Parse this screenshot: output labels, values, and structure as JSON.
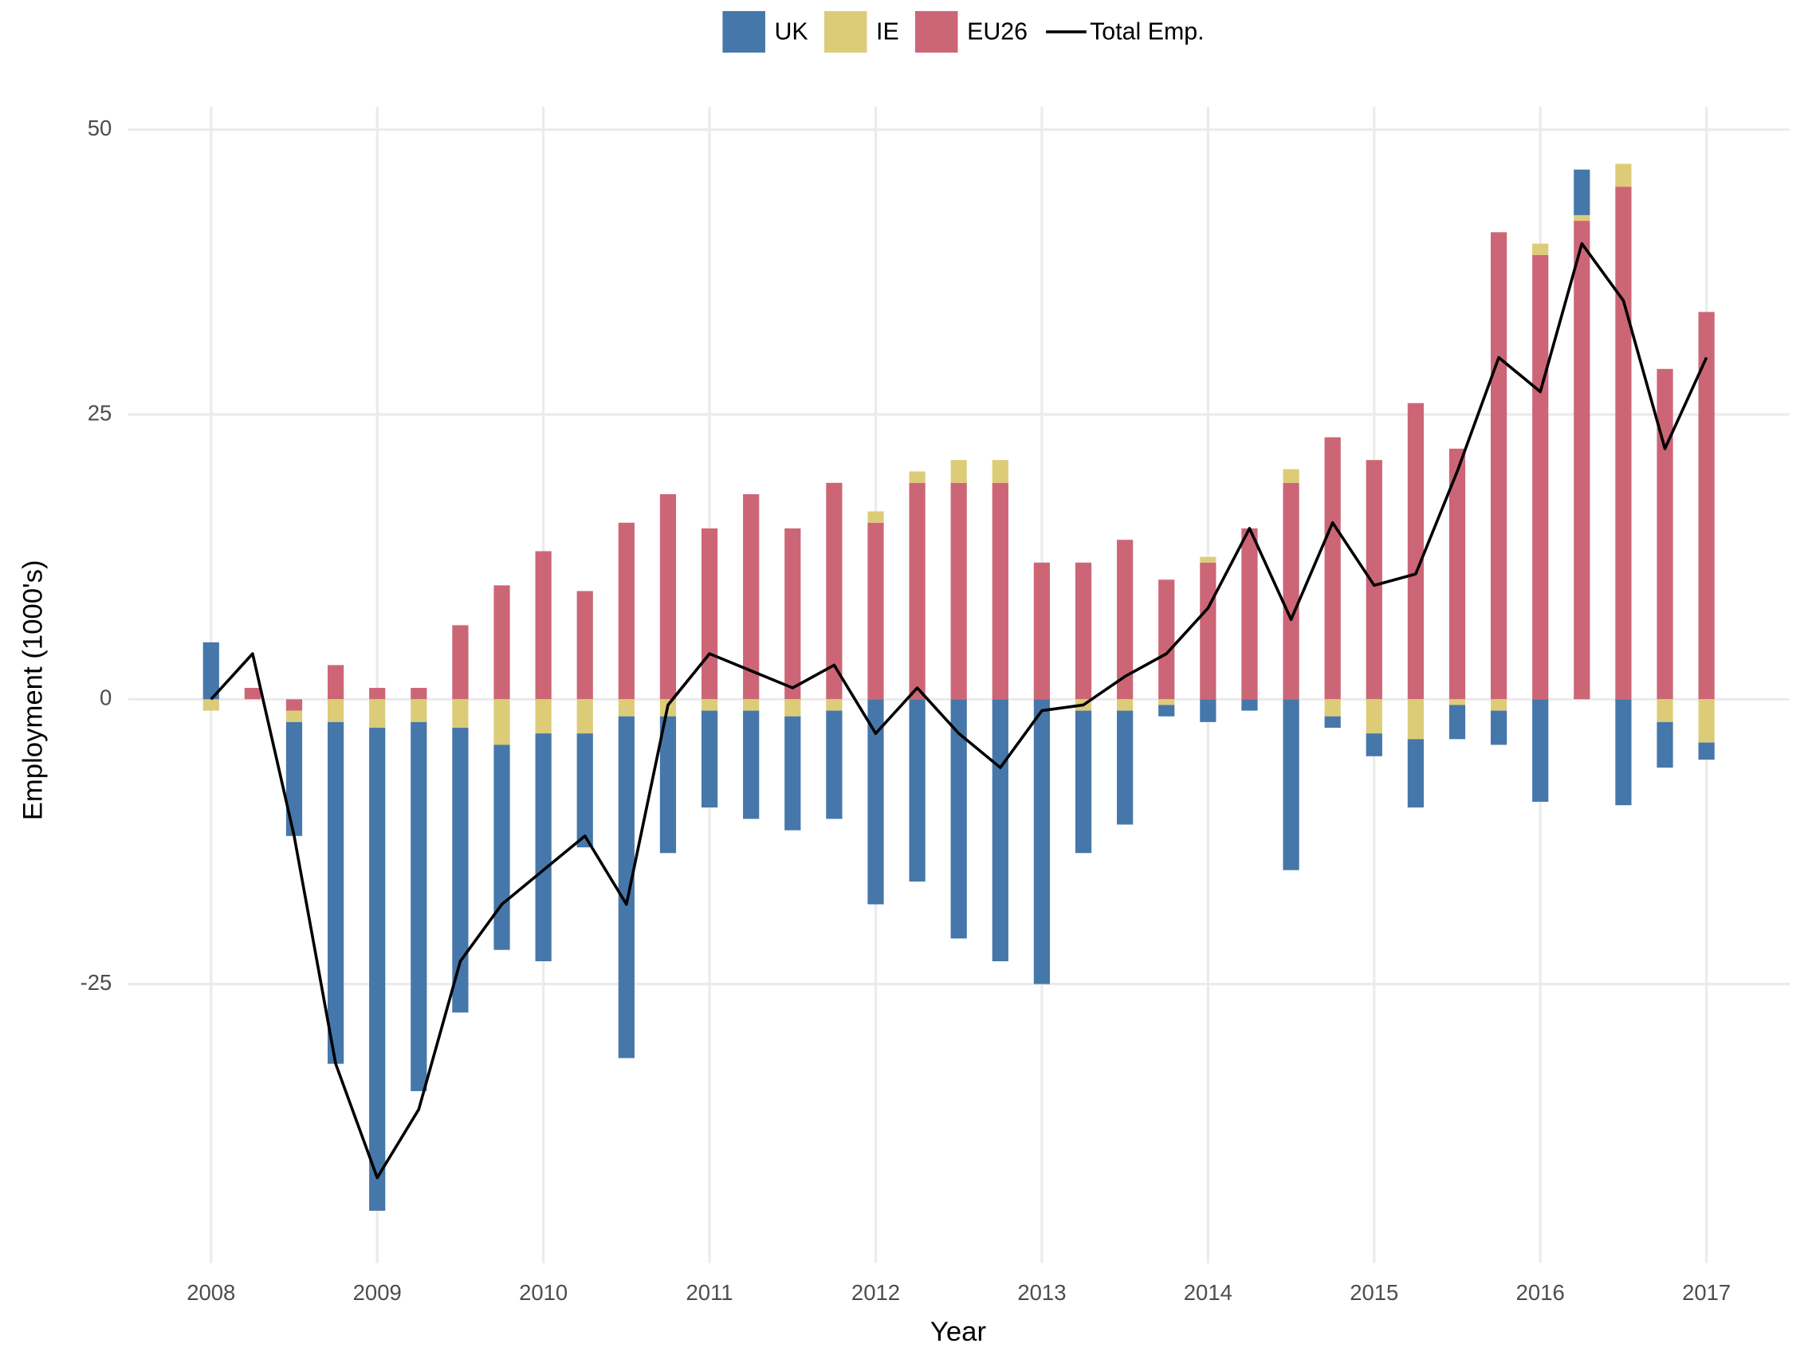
{
  "chart_data": {
    "type": "bar",
    "x_label": "Year",
    "y_label": "Employment (1000's)",
    "x": [
      2008,
      2008.25,
      2008.5,
      2008.75,
      2009,
      2009.25,
      2009.5,
      2009.75,
      2010,
      2010.25,
      2010.5,
      2010.75,
      2011,
      2011.25,
      2011.5,
      2011.75,
      2012,
      2012.25,
      2012.5,
      2012.75,
      2013,
      2013.25,
      2013.5,
      2013.75,
      2014,
      2014.25,
      2014.5,
      2014.75,
      2015,
      2015.25,
      2015.5,
      2015.75,
      2016,
      2016.25,
      2016.5,
      2016.75,
      2017
    ],
    "series": [
      {
        "name": "UK",
        "type": "bar",
        "color": "#4677aa",
        "values": [
          5,
          0,
          -10,
          -30,
          -42.4,
          -32.4,
          -25,
          -18,
          -20,
          -10,
          -30,
          -12,
          -8.5,
          -9.5,
          -10,
          -9.5,
          -18,
          -16,
          -21,
          -23,
          -25,
          -12.5,
          -10,
          -1,
          -2,
          -1,
          -15,
          -1,
          -2,
          -6,
          -3,
          -3,
          -9,
          4,
          -9.3,
          -4,
          -1.5
        ]
      },
      {
        "name": "IE",
        "type": "bar",
        "color": "#ddcc77",
        "values": [
          -1,
          0,
          -1,
          -2,
          -2.5,
          -2,
          -2.5,
          -4,
          -3,
          -3,
          -1.5,
          -1.5,
          -1,
          -1,
          -1.5,
          -1,
          1,
          1,
          2,
          2,
          0,
          -1,
          -1,
          -0.5,
          0.5,
          0,
          1.2,
          -1.5,
          -3,
          -3.5,
          -0.5,
          -1,
          1,
          0.5,
          2,
          -2,
          -3.8
        ]
      },
      {
        "name": "EU26",
        "type": "bar",
        "color": "#cc6677",
        "values": [
          0,
          1,
          -1,
          3,
          1,
          1,
          6.5,
          10,
          13,
          9.5,
          15.5,
          18,
          15,
          18,
          15,
          19,
          15.5,
          19,
          19,
          19,
          12,
          12,
          14,
          10.5,
          12,
          15,
          19,
          23,
          21,
          26,
          22,
          41,
          39,
          42,
          45,
          29,
          34
        ]
      },
      {
        "name": "Total Emp.",
        "type": "line",
        "color": "#000000",
        "values": [
          0,
          4,
          -12,
          -32,
          -42,
          -36,
          -23,
          -18,
          -15,
          -12,
          -18,
          -0.5,
          4,
          2.5,
          1,
          3,
          -3,
          1,
          -3,
          -6,
          -1,
          -0.5,
          2,
          4,
          8,
          15,
          7,
          15.5,
          10,
          11,
          20,
          30,
          27,
          40,
          35,
          22,
          30
        ]
      }
    ],
    "xlim": [
      2007.5,
      2017.5
    ],
    "xticks": [
      2008,
      2009,
      2010,
      2011,
      2012,
      2013,
      2014,
      2015,
      2016,
      2017
    ],
    "ylim": [
      -49.5,
      51
    ],
    "yticks": [
      -25,
      0,
      25,
      50
    ],
    "grid": true,
    "legend": "top"
  }
}
